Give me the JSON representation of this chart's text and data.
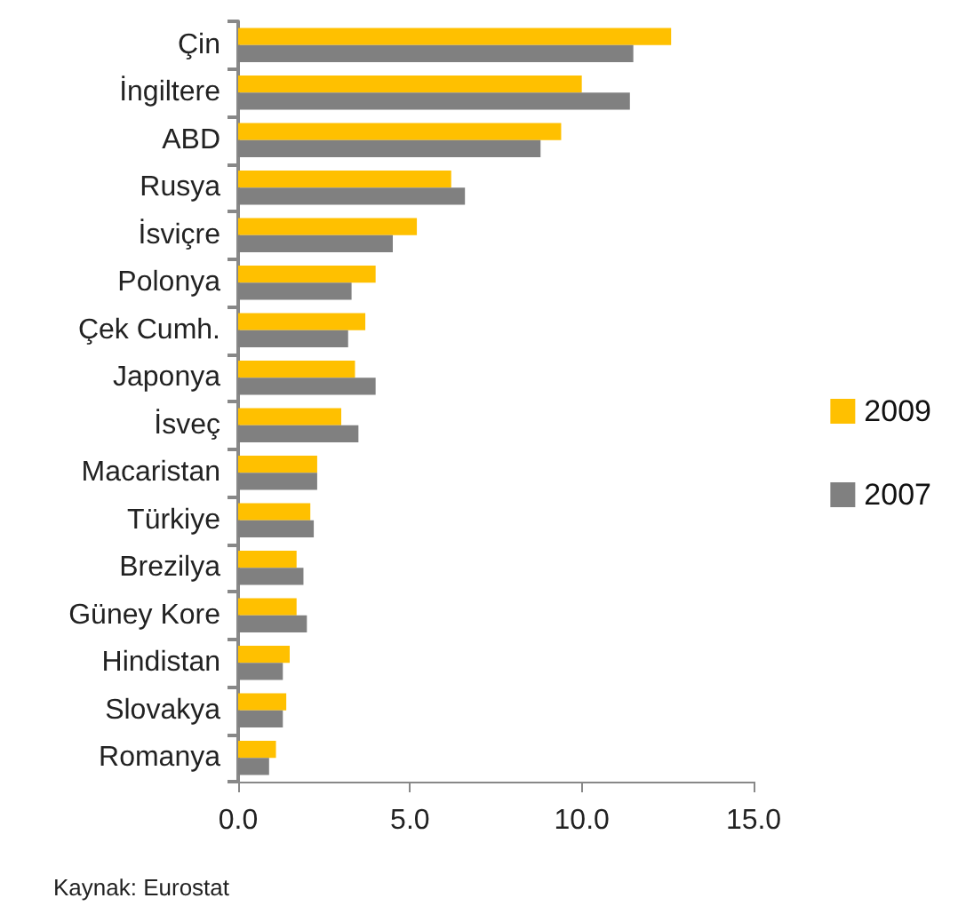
{
  "chart_data": {
    "type": "bar",
    "orientation": "horizontal",
    "categories": [
      "Çin",
      "İngiltere",
      "ABD",
      "Rusya",
      "İsviçre",
      "Polonya",
      "Çek Cumh.",
      "Japonya",
      "İsveç",
      "Macaristan",
      "Türkiye",
      "Brezilya",
      "Güney Kore",
      "Hindistan",
      "Slovakya",
      "Romanya"
    ],
    "series": [
      {
        "name": "2009",
        "color": "#ffc000",
        "values": [
          12.6,
          10.0,
          9.4,
          6.2,
          5.2,
          4.0,
          3.7,
          3.4,
          3.0,
          2.3,
          2.1,
          1.7,
          1.7,
          1.5,
          1.4,
          1.1
        ]
      },
      {
        "name": "2007",
        "color": "#808080",
        "values": [
          11.5,
          11.4,
          8.8,
          6.6,
          4.5,
          3.3,
          3.2,
          4.0,
          3.5,
          2.3,
          2.2,
          1.9,
          2.0,
          1.3,
          1.3,
          0.9
        ]
      }
    ],
    "xlim": [
      0,
      15
    ],
    "xticks": [
      {
        "value": 0,
        "label": "0.0"
      },
      {
        "value": 5,
        "label": "5.0"
      },
      {
        "value": 10,
        "label": "10.0"
      },
      {
        "value": 15,
        "label": "15.0"
      }
    ],
    "grid": false,
    "legend": "right",
    "annotations": [
      "Kaynak: Eurostat"
    ]
  }
}
